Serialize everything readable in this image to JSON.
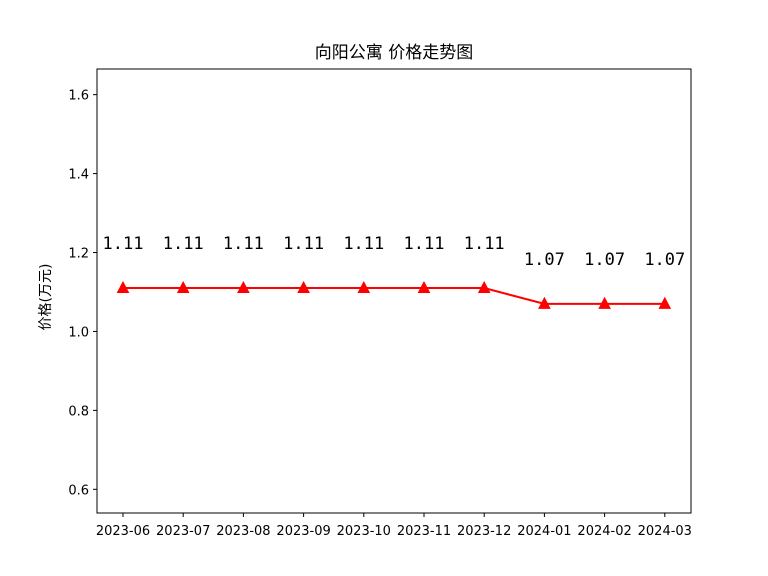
{
  "chart_data": {
    "type": "line",
    "title": "向阳公寓 价格走势图",
    "xlabel": "",
    "ylabel": "价格(万元)",
    "categories": [
      "2023-06",
      "2023-07",
      "2023-08",
      "2023-09",
      "2023-10",
      "2023-11",
      "2023-12",
      "2024-01",
      "2024-02",
      "2024-03"
    ],
    "values": [
      1.11,
      1.11,
      1.11,
      1.11,
      1.11,
      1.11,
      1.11,
      1.07,
      1.07,
      1.07
    ],
    "data_labels": [
      "1.11",
      "1.11",
      "1.11",
      "1.11",
      "1.11",
      "1.11",
      "1.11",
      "1.07",
      "1.07",
      "1.07"
    ],
    "ylim": [
      0.54,
      1.665
    ],
    "yticks": [
      0.6,
      0.8,
      1.0,
      1.2,
      1.4,
      1.6
    ],
    "ytick_labels": [
      "0.6",
      "0.8",
      "1.0",
      "1.2",
      "1.4",
      "1.6"
    ],
    "grid": false,
    "marker": "triangle-up",
    "line_color": "#ff0000"
  }
}
